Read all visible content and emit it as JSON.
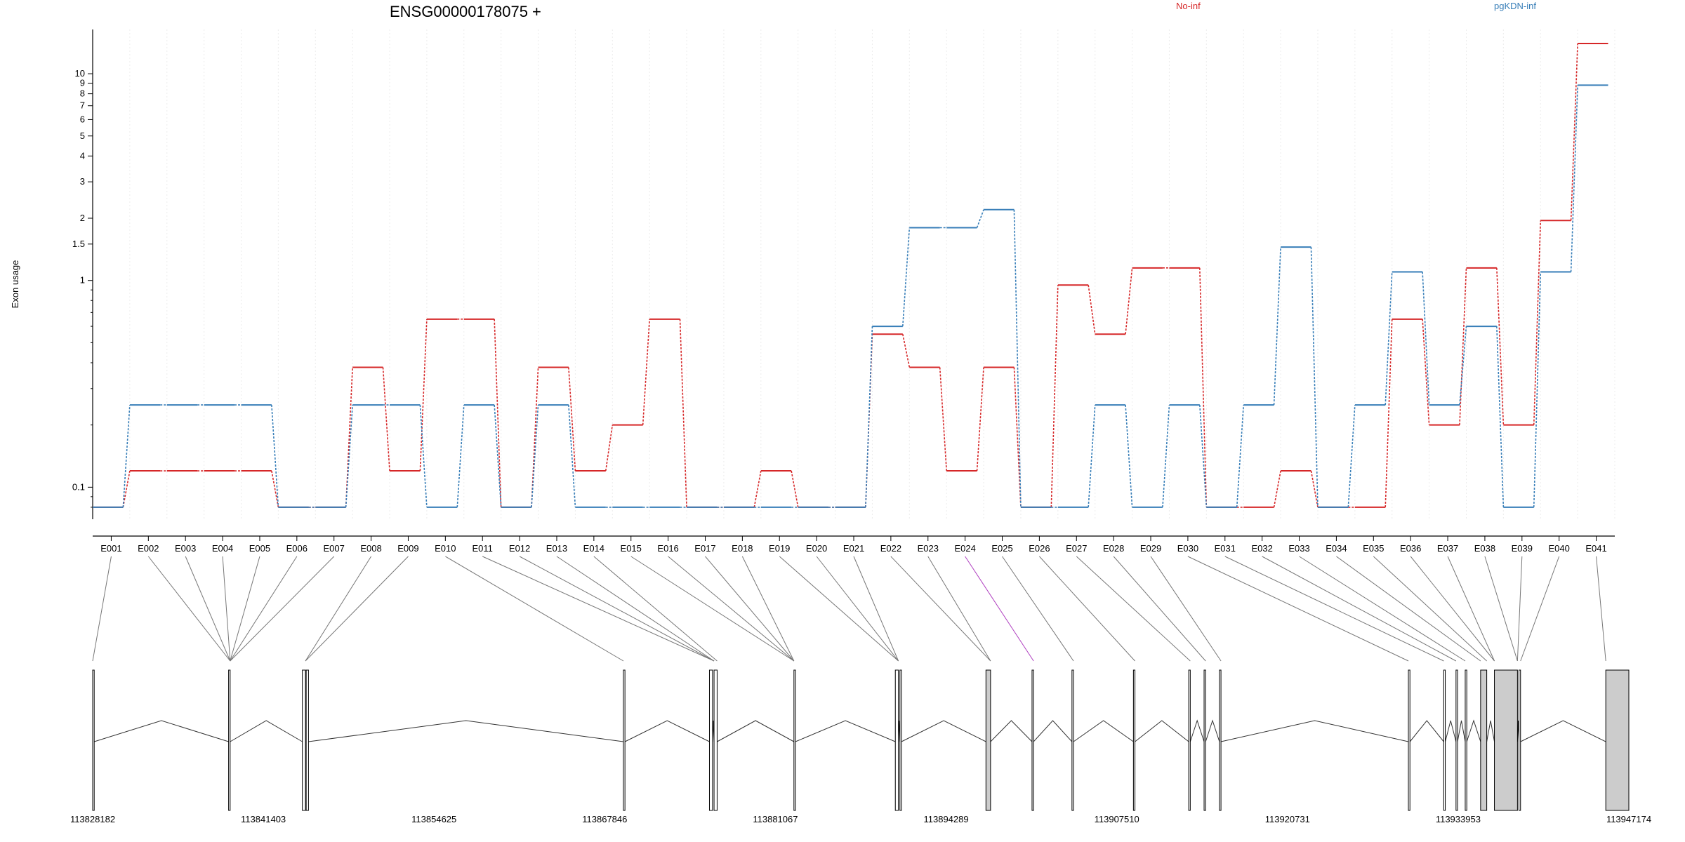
{
  "chart_data": {
    "type": "line",
    "title": "ENSG00000178075 +",
    "ylabel": "Exon usage",
    "y_scale": "log",
    "ylim": [
      0.07,
      14
    ],
    "yticks": [
      0.1,
      1,
      1.5,
      2,
      3,
      4,
      5,
      6,
      7,
      8,
      9,
      10
    ],
    "grid": "vertical-light",
    "legend_placement": "top",
    "categories": [
      "E001",
      "E002",
      "E003",
      "E004",
      "E005",
      "E006",
      "E007",
      "E008",
      "E009",
      "E010",
      "E011",
      "E012",
      "E013",
      "E014",
      "E015",
      "E016",
      "E017",
      "E018",
      "E019",
      "E020",
      "E021",
      "E022",
      "E023",
      "E024",
      "E025",
      "E026",
      "E027",
      "E028",
      "E029",
      "E030",
      "E031",
      "E032",
      "E033",
      "E034",
      "E035",
      "E036",
      "E037",
      "E038",
      "E039",
      "E040",
      "E041"
    ],
    "series": [
      {
        "name": "No-inf",
        "color": "#d62728",
        "values": [
          0.08,
          0.12,
          0.12,
          0.12,
          0.12,
          0.08,
          0.08,
          0.38,
          0.12,
          0.65,
          0.65,
          0.08,
          0.38,
          0.12,
          0.2,
          0.65,
          0.08,
          0.08,
          0.12,
          0.08,
          0.08,
          0.55,
          0.38,
          0.12,
          0.38,
          0.08,
          0.95,
          0.55,
          1.15,
          1.15,
          0.08,
          0.08,
          0.12,
          0.08,
          0.08,
          0.65,
          0.2,
          1.15,
          0.2,
          1.95,
          14
        ]
      },
      {
        "name": "pgKDN-inf",
        "color": "#377eb8",
        "values": [
          0.08,
          0.25,
          0.25,
          0.25,
          0.25,
          0.08,
          0.08,
          0.25,
          0.25,
          0.08,
          0.25,
          0.08,
          0.25,
          0.08,
          0.08,
          0.08,
          0.08,
          0.08,
          0.08,
          0.08,
          0.08,
          0.6,
          1.8,
          1.8,
          2.2,
          0.08,
          0.08,
          0.25,
          0.08,
          0.25,
          0.08,
          0.25,
          1.45,
          0.08,
          0.25,
          1.1,
          0.25,
          0.6,
          0.08,
          1.1,
          8.8
        ]
      }
    ],
    "gene_model": {
      "genomic_ticks": [
        "113828182",
        "113841403",
        "113854625",
        "113867846",
        "113881067",
        "113894289",
        "113907510",
        "113920731",
        "113933953",
        "113947174"
      ],
      "exon_starts_fraction": [
        0.0,
        0.0,
        0.0,
        0.0,
        0.0
      ],
      "exons": [
        {
          "s": 0.0,
          "e": 0.001
        },
        {
          "s": 0.0885,
          "e": 0.0895
        },
        {
          "s": 0.1365,
          "e": 0.1385
        },
        {
          "s": 0.139,
          "e": 0.1405
        },
        {
          "s": 0.3455,
          "e": 0.3465
        },
        {
          "s": 0.4015,
          "e": 0.4035
        },
        {
          "s": 0.4045,
          "e": 0.4065
        },
        {
          "s": 0.4565,
          "e": 0.4575
        },
        {
          "s": 0.5225,
          "e": 0.5245
        },
        {
          "s": 0.5255,
          "e": 0.5265
        },
        {
          "s": 0.5815,
          "e": 0.5845
        },
        {
          "s": 0.6115,
          "e": 0.6125
        },
        {
          "s": 0.6375,
          "e": 0.6385
        },
        {
          "s": 0.6775,
          "e": 0.6785
        },
        {
          "s": 0.7135,
          "e": 0.7145
        },
        {
          "s": 0.7235,
          "e": 0.7245
        },
        {
          "s": 0.7335,
          "e": 0.7345
        },
        {
          "s": 0.8565,
          "e": 0.8575
        },
        {
          "s": 0.8795,
          "e": 0.8805
        },
        {
          "s": 0.8875,
          "e": 0.8885
        },
        {
          "s": 0.8935,
          "e": 0.8945
        },
        {
          "s": 0.9035,
          "e": 0.9075
        },
        {
          "s": 0.9125,
          "e": 0.9275
        },
        {
          "s": 0.9285,
          "e": 0.9295
        },
        {
          "s": 0.985,
          "e": 1.0
        }
      ],
      "exon_links_fraction": [
        0.0,
        0.0895,
        0.0895,
        0.0895,
        0.0895,
        0.0895,
        0.0895,
        0.1385,
        0.1385,
        0.3455,
        0.4045,
        0.4045,
        0.4045,
        0.4065,
        0.4565,
        0.4565,
        0.4565,
        0.4565,
        0.5245,
        0.5245,
        0.5245,
        0.5845,
        0.5845,
        0.6125,
        0.6385,
        0.6785,
        0.7145,
        0.7245,
        0.7345,
        0.8565,
        0.8795,
        0.8875,
        0.8935,
        0.9035,
        0.9075,
        0.9125,
        0.9125,
        0.9275,
        0.9275,
        0.9295,
        0.985
      ]
    }
  }
}
